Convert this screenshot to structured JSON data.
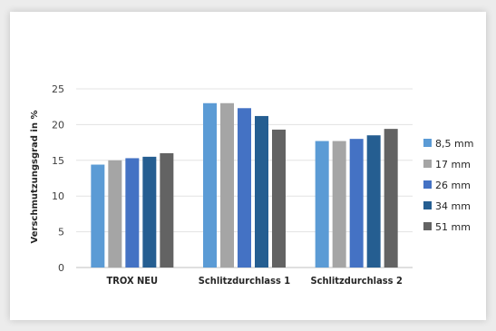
{
  "chart_data": {
    "type": "bar",
    "title": "",
    "xlabel": "",
    "ylabel": "Verschmutzungsgrad in %",
    "ylim": [
      0,
      25
    ],
    "yticks": [
      0,
      5,
      10,
      15,
      20,
      25
    ],
    "grid": true,
    "legend_position": "right",
    "categories": [
      "TROX NEU",
      "Schlitzdurchlass 1",
      "Schlitzdurchlass 2"
    ],
    "series": [
      {
        "name": "8,5 mm",
        "color": "#5b9bd5",
        "values": [
          14.4,
          23.0,
          17.7
        ]
      },
      {
        "name": "17 mm",
        "color": "#a5a5a5",
        "values": [
          15.0,
          23.0,
          17.7
        ]
      },
      {
        "name": "26 mm",
        "color": "#4472c4",
        "values": [
          15.3,
          22.3,
          18.0
        ]
      },
      {
        "name": "34 mm",
        "color": "#255e91",
        "values": [
          15.5,
          21.2,
          18.5
        ]
      },
      {
        "name": "51 mm",
        "color": "#636363",
        "values": [
          16.0,
          19.3,
          19.4
        ]
      }
    ]
  }
}
